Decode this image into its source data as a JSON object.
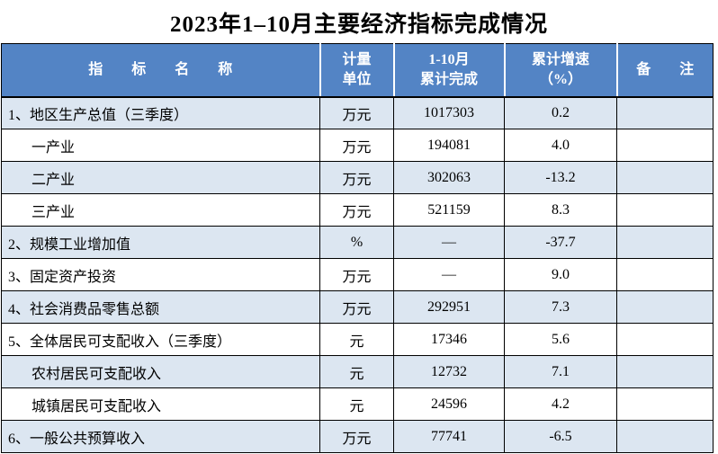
{
  "title": "2023年1–10月主要经济指标完成情况",
  "colors": {
    "header_bg": "#5384c5",
    "header_text": "#ffffff",
    "shaded_row_bg": "#dce6f1",
    "row_bg": "#ffffff",
    "border": "#000000",
    "text": "#000000"
  },
  "table": {
    "columns": [
      {
        "label": "指　　标　　名　　称"
      },
      {
        "label": "计量\n单位"
      },
      {
        "label": "1-10月\n累计完成"
      },
      {
        "label": "累计增速\n（%）"
      },
      {
        "label": "备　　注"
      }
    ],
    "rows": [
      {
        "name": "1、地区生产总值（三季度）",
        "unit": "万元",
        "value": "1017303",
        "growth": "0.2",
        "note": "",
        "indent": false,
        "shaded": true
      },
      {
        "name": "一产业",
        "unit": "万元",
        "value": "194081",
        "growth": "4.0",
        "note": "",
        "indent": true,
        "shaded": false
      },
      {
        "name": "二产业",
        "unit": "万元",
        "value": "302063",
        "growth": "-13.2",
        "note": "",
        "indent": true,
        "shaded": true
      },
      {
        "name": "三产业",
        "unit": "万元",
        "value": "521159",
        "growth": "8.3",
        "note": "",
        "indent": true,
        "shaded": false
      },
      {
        "name": "2、规模工业增加值",
        "unit": "%",
        "value": "—",
        "growth": "-37.7",
        "note": "",
        "indent": false,
        "shaded": true
      },
      {
        "name": "3、固定资产投资",
        "unit": "万元",
        "value": "—",
        "growth": "9.0",
        "note": "",
        "indent": false,
        "shaded": false
      },
      {
        "name": "4、社会消费品零售总额",
        "unit": "万元",
        "value": "292951",
        "growth": "7.3",
        "note": "",
        "indent": false,
        "shaded": true
      },
      {
        "name": "5、全体居民可支配收入（三季度）",
        "unit": "元",
        "value": "17346",
        "growth": "5.6",
        "note": "",
        "indent": false,
        "shaded": false
      },
      {
        "name": "农村居民可支配收入",
        "unit": "元",
        "value": "12732",
        "growth": "7.1",
        "note": "",
        "indent": true,
        "shaded": true
      },
      {
        "name": "城镇居民可支配收入",
        "unit": "元",
        "value": "24596",
        "growth": "4.2",
        "note": "",
        "indent": true,
        "shaded": false
      },
      {
        "name": "6、一般公共预算收入",
        "unit": "万元",
        "value": "77741",
        "growth": "-6.5",
        "note": "",
        "indent": false,
        "shaded": true
      }
    ]
  }
}
